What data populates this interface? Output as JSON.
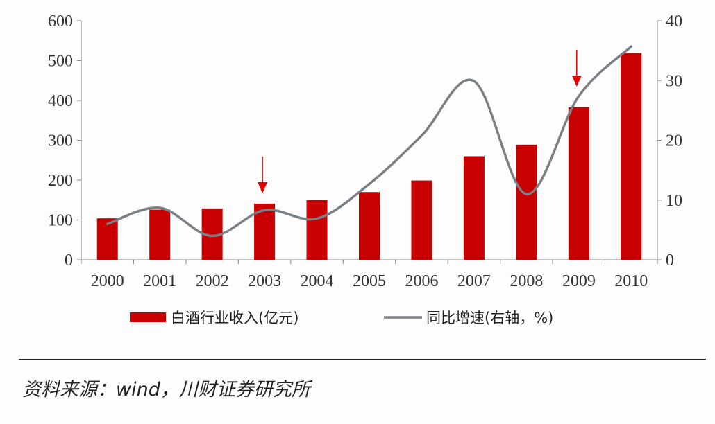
{
  "chart_data": {
    "type": "bar+line",
    "categories": [
      "2000",
      "2001",
      "2002",
      "2003",
      "2004",
      "2005",
      "2006",
      "2007",
      "2008",
      "2009",
      "2010"
    ],
    "series": [
      {
        "name": "白酒行业收入(亿元)",
        "type": "bar",
        "axis": "left",
        "color": "#c90000",
        "values": [
          104,
          126,
          129,
          141,
          150,
          170,
          199,
          260,
          289,
          383,
          519
        ]
      },
      {
        "name": "同比增速(右轴，%)",
        "type": "line",
        "axis": "right",
        "color": "#7a7f86",
        "values": [
          6.0,
          8.7,
          4.0,
          8.3,
          6.9,
          12.7,
          20.8,
          29.9,
          11.0,
          27.4,
          35.7
        ]
      }
    ],
    "left_axis": {
      "ylim": [
        0,
        600
      ],
      "ticks": [
        "0",
        "100",
        "200",
        "300",
        "400",
        "500",
        "600"
      ]
    },
    "right_axis": {
      "ylim": [
        0,
        40
      ],
      "ticks": [
        "0",
        "10",
        "20",
        "30",
        "40"
      ]
    },
    "annotations": [
      {
        "type": "arrow",
        "category": "2003",
        "color": "#e00000"
      },
      {
        "type": "arrow",
        "category": "2009",
        "color": "#e00000"
      }
    ],
    "grid": false,
    "legend": "bottom"
  },
  "source": "资料来源：wind，川财证券研究所"
}
